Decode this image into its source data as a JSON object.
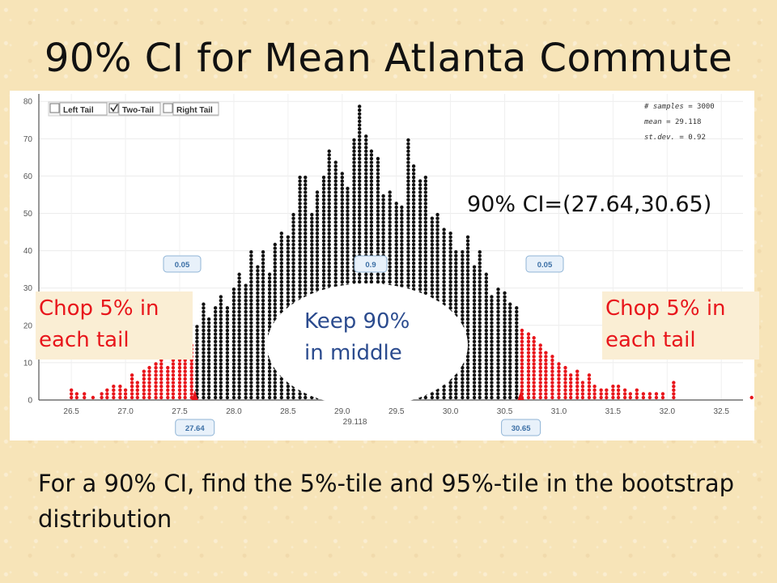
{
  "slide": {
    "title": "90% CI for Mean Atlanta Commute",
    "ci_result": "90% CI=(27.64,30.65)",
    "chop_left": "Chop 5% in each tail",
    "chop_right": "Chop 5% in each tail",
    "keep_middle": "Keep 90% in middle",
    "footer": "For a 90% CI, find the 5%-tile and 95%-tile in the bootstrap distribution"
  },
  "controls": {
    "left_tail": {
      "label": "Left Tail",
      "checked": false
    },
    "two_tail": {
      "label": "Two-Tail",
      "checked": true
    },
    "right_tail": {
      "label": "Right Tail",
      "checked": false
    }
  },
  "stats": {
    "samples_label": "# samples",
    "samples_value": "3000",
    "mean_label": "mean",
    "mean_value": "29.118",
    "sd_label": "st.dev.",
    "sd_value": "0.92"
  },
  "proportions": {
    "left": "0.05",
    "middle": "0.9",
    "right": "0.05"
  },
  "cutoffs": {
    "lower": "27.64",
    "upper": "30.65",
    "mean": "29.118"
  },
  "colors": {
    "inside": "#111111",
    "tail": "#e8151b",
    "badge_border": "#8fb4d6",
    "badge_text": "#3a6ea5"
  },
  "chart_data": {
    "type": "dotplot",
    "xlim": [
      26.2,
      32.7
    ],
    "ylim": [
      0,
      82
    ],
    "x_ticks": [
      "26.5",
      "27.0",
      "27.5",
      "28.0",
      "28.5",
      "29.0",
      "29.5",
      "30.0",
      "30.5",
      "31.0",
      "31.5",
      "32.0",
      "32.5"
    ],
    "y_ticks": [
      "0",
      "10",
      "20",
      "30",
      "40",
      "50",
      "60",
      "70",
      "80"
    ],
    "lower_cut": 27.64,
    "upper_cut": 30.65,
    "mean": 29.118,
    "bins": [
      {
        "x": 26.5,
        "count": 3
      },
      {
        "x": 26.55,
        "count": 2
      },
      {
        "x": 26.62,
        "count": 2
      },
      {
        "x": 26.7,
        "count": 1
      },
      {
        "x": 26.78,
        "count": 2
      },
      {
        "x": 26.83,
        "count": 3
      },
      {
        "x": 26.89,
        "count": 4
      },
      {
        "x": 26.95,
        "count": 4
      },
      {
        "x": 27.0,
        "count": 3
      },
      {
        "x": 27.06,
        "count": 7
      },
      {
        "x": 27.11,
        "count": 5
      },
      {
        "x": 27.17,
        "count": 8
      },
      {
        "x": 27.22,
        "count": 9
      },
      {
        "x": 27.28,
        "count": 10
      },
      {
        "x": 27.33,
        "count": 12
      },
      {
        "x": 27.39,
        "count": 9
      },
      {
        "x": 27.44,
        "count": 14
      },
      {
        "x": 27.5,
        "count": 12
      },
      {
        "x": 27.55,
        "count": 16
      },
      {
        "x": 27.61,
        "count": 15
      },
      {
        "x": 27.66,
        "count": 20
      },
      {
        "x": 27.72,
        "count": 26
      },
      {
        "x": 27.77,
        "count": 22
      },
      {
        "x": 27.83,
        "count": 25
      },
      {
        "x": 27.88,
        "count": 28
      },
      {
        "x": 27.94,
        "count": 25
      },
      {
        "x": 28.0,
        "count": 30
      },
      {
        "x": 28.05,
        "count": 34
      },
      {
        "x": 28.11,
        "count": 31
      },
      {
        "x": 28.16,
        "count": 40
      },
      {
        "x": 28.22,
        "count": 36
      },
      {
        "x": 28.27,
        "count": 40
      },
      {
        "x": 28.33,
        "count": 34
      },
      {
        "x": 28.38,
        "count": 42
      },
      {
        "x": 28.44,
        "count": 45
      },
      {
        "x": 28.5,
        "count": 44
      },
      {
        "x": 28.55,
        "count": 50
      },
      {
        "x": 28.61,
        "count": 60
      },
      {
        "x": 28.66,
        "count": 60
      },
      {
        "x": 28.72,
        "count": 50
      },
      {
        "x": 28.77,
        "count": 56
      },
      {
        "x": 28.83,
        "count": 60
      },
      {
        "x": 28.88,
        "count": 67
      },
      {
        "x": 28.94,
        "count": 64
      },
      {
        "x": 29.0,
        "count": 61
      },
      {
        "x": 29.05,
        "count": 57
      },
      {
        "x": 29.11,
        "count": 70
      },
      {
        "x": 29.16,
        "count": 79
      },
      {
        "x": 29.22,
        "count": 71
      },
      {
        "x": 29.27,
        "count": 67
      },
      {
        "x": 29.33,
        "count": 65
      },
      {
        "x": 29.38,
        "count": 55
      },
      {
        "x": 29.44,
        "count": 56
      },
      {
        "x": 29.5,
        "count": 53
      },
      {
        "x": 29.55,
        "count": 52
      },
      {
        "x": 29.61,
        "count": 70
      },
      {
        "x": 29.66,
        "count": 63
      },
      {
        "x": 29.72,
        "count": 59
      },
      {
        "x": 29.77,
        "count": 60
      },
      {
        "x": 29.83,
        "count": 49
      },
      {
        "x": 29.88,
        "count": 50
      },
      {
        "x": 29.94,
        "count": 46
      },
      {
        "x": 30.0,
        "count": 45
      },
      {
        "x": 30.05,
        "count": 40
      },
      {
        "x": 30.11,
        "count": 40
      },
      {
        "x": 30.16,
        "count": 44
      },
      {
        "x": 30.22,
        "count": 36
      },
      {
        "x": 30.27,
        "count": 40
      },
      {
        "x": 30.33,
        "count": 34
      },
      {
        "x": 30.38,
        "count": 28
      },
      {
        "x": 30.44,
        "count": 30
      },
      {
        "x": 30.5,
        "count": 29
      },
      {
        "x": 30.55,
        "count": 26
      },
      {
        "x": 30.61,
        "count": 25
      },
      {
        "x": 30.66,
        "count": 19
      },
      {
        "x": 30.72,
        "count": 18
      },
      {
        "x": 30.77,
        "count": 17
      },
      {
        "x": 30.83,
        "count": 15
      },
      {
        "x": 30.88,
        "count": 13
      },
      {
        "x": 30.94,
        "count": 12
      },
      {
        "x": 31.0,
        "count": 10
      },
      {
        "x": 31.06,
        "count": 9
      },
      {
        "x": 31.11,
        "count": 7
      },
      {
        "x": 31.17,
        "count": 8
      },
      {
        "x": 31.22,
        "count": 5
      },
      {
        "x": 31.28,
        "count": 7
      },
      {
        "x": 31.33,
        "count": 4
      },
      {
        "x": 31.39,
        "count": 3
      },
      {
        "x": 31.44,
        "count": 3
      },
      {
        "x": 31.5,
        "count": 4
      },
      {
        "x": 31.55,
        "count": 4
      },
      {
        "x": 31.61,
        "count": 3
      },
      {
        "x": 31.66,
        "count": 2
      },
      {
        "x": 31.72,
        "count": 3
      },
      {
        "x": 31.78,
        "count": 2
      },
      {
        "x": 31.84,
        "count": 2
      },
      {
        "x": 31.9,
        "count": 2
      },
      {
        "x": 31.96,
        "count": 2
      },
      {
        "x": 32.06,
        "count": 5
      },
      {
        "x": 32.78,
        "count": 1
      }
    ]
  }
}
